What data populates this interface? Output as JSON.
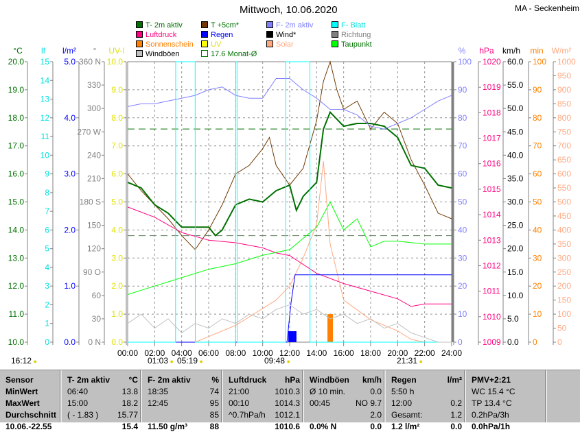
{
  "title": "Mittwoch, 10.06.2020",
  "station": "MA - Seckenheim",
  "legend": [
    {
      "label": "T- 2m aktiv",
      "color": "#007000",
      "text": "#007000"
    },
    {
      "label": "T +5cm*",
      "color": "#703800",
      "text": "#007000"
    },
    {
      "label": "F- 2m aktiv",
      "color": "#8080ff",
      "text": "#8080ff"
    },
    {
      "label": "F- Blatt",
      "color": "#00ffff",
      "text": "#00e0e0"
    },
    {
      "label": "Luftdruck",
      "color": "#ff0080",
      "text": "#ff0080"
    },
    {
      "label": "Regen",
      "color": "#0000ff",
      "text": "#0000ff"
    },
    {
      "label": "Wind*",
      "color": "#000000",
      "text": "#000000"
    },
    {
      "label": "Richtung",
      "color": "#808080",
      "text": "#808080"
    },
    {
      "label": "Sonnenschein",
      "color": "#ff8000",
      "text": "#ff8000"
    },
    {
      "label": "UV",
      "color": "#ffff00",
      "text": "#e0e000"
    },
    {
      "label": "Solar",
      "color": "#ffa880",
      "text": "#ffa880"
    },
    {
      "label": "Taupunkt",
      "color": "#00ff00",
      "text": "#007000"
    },
    {
      "label": "Windböen",
      "color": "#c0c0c0",
      "text": "#000000"
    },
    {
      "label": "17.6 Monat-Ø",
      "color": "none",
      "text": "#007000"
    }
  ],
  "chart_data": {
    "type": "line",
    "title": "Mittwoch, 10.06.2020",
    "xlabel": "time",
    "xlim": [
      0,
      24
    ],
    "x_ticks": [
      "00:00",
      "02:00",
      "04:00",
      "06:00",
      "08:00",
      "10:00",
      "12:00",
      "14:00",
      "16:00",
      "18:00",
      "20:00",
      "22:00",
      "24:00"
    ],
    "axes": {
      "left": [
        {
          "unit": "°C",
          "min": 10,
          "max": 20,
          "step": 1,
          "color": "#007000",
          "labels": [
            "10.0",
            "11.0",
            "12.0",
            "13.0",
            "14.0",
            "15.0",
            "16.0",
            "17.0",
            "18.0",
            "19.0",
            "20.0"
          ]
        },
        {
          "unit": "lf",
          "min": 0,
          "max": 15,
          "step": 1,
          "color": "#00e0e0",
          "labels": [
            "0",
            "1",
            "2",
            "3",
            "4",
            "5",
            "6",
            "7",
            "8",
            "9",
            "10",
            "11",
            "12",
            "13",
            "14",
            "15"
          ]
        },
        {
          "unit": "l/m²",
          "min": 0,
          "max": 5,
          "step": 1,
          "color": "#0000ff",
          "labels": [
            "0.0",
            "1.0",
            "2.0",
            "3.0",
            "4.0",
            "5.0"
          ]
        },
        {
          "unit": "°",
          "min": 0,
          "max": 360,
          "step": 30,
          "color": "#808080",
          "labels": [
            "0    N",
            "30",
            "60",
            "90    O",
            "120",
            "150",
            "180    S",
            "210",
            "240",
            "270    W",
            "300",
            "330",
            "360    N"
          ]
        },
        {
          "unit": "UV-I",
          "min": 0,
          "max": 10,
          "step": 1,
          "color": "#e0e000",
          "labels": [
            "0.0",
            "1.0",
            "2.0",
            "3.0",
            "4.0",
            "5.0",
            "6.0",
            "7.0",
            "8.0",
            "9.0",
            "10.0"
          ]
        }
      ],
      "right": [
        {
          "unit": "%",
          "min": 0,
          "max": 100,
          "step": 10,
          "color": "#8080ff",
          "labels": [
            "0",
            "10",
            "20",
            "30",
            "40",
            "50",
            "60",
            "70",
            "80",
            "90",
            "100"
          ]
        },
        {
          "unit": "hPa",
          "min": 1009,
          "max": 1020,
          "step": 1,
          "color": "#ff0080",
          "labels": [
            "1009",
            "1010",
            "1011",
            "1012",
            "1013",
            "1014",
            "1015",
            "1016",
            "1017",
            "1018",
            "1019",
            "1020"
          ]
        },
        {
          "unit": "km/h",
          "min": 0,
          "max": 60,
          "step": 5,
          "color": "#000000",
          "labels": [
            "0.0",
            "5.0",
            "10.0",
            "15.0",
            "20.0",
            "25.0",
            "30.0",
            "35.0",
            "40.0",
            "45.0",
            "50.0",
            "55.0",
            "60.0"
          ]
        },
        {
          "unit": "min",
          "min": 0,
          "max": 100,
          "step": 10,
          "color": "#ff8000",
          "labels": [
            "0",
            "10",
            "20",
            "30",
            "40",
            "50",
            "60",
            "70",
            "80",
            "90",
            "100"
          ]
        },
        {
          "unit": "W/m²",
          "min": 0,
          "max": 1000,
          "step": 50,
          "color": "#ffa880",
          "labels": [
            "0",
            "50",
            "100",
            "150",
            "200",
            "250",
            "300",
            "350",
            "400",
            "450",
            "500",
            "550",
            "600",
            "650",
            "700",
            "750",
            "800",
            "850",
            "900",
            "950",
            "1000"
          ]
        }
      ]
    },
    "series": [
      {
        "name": "T+5cm",
        "axis": "°C",
        "color": "#703800",
        "x": [
          0,
          1,
          2,
          3,
          4,
          5,
          6,
          7,
          8,
          9,
          10,
          10.5,
          11,
          12,
          13,
          14,
          14.5,
          15,
          15.5,
          16,
          17,
          18,
          19,
          20,
          21,
          22,
          23,
          24
        ],
        "y": [
          16.0,
          15.4,
          14.9,
          14.4,
          13.8,
          13.3,
          14.0,
          14.9,
          16.0,
          16.3,
          16.9,
          17.3,
          16.3,
          15.6,
          16.2,
          17.9,
          19.3,
          20.0,
          19.0,
          18.3,
          18.6,
          17.6,
          18.2,
          17.8,
          16.5,
          15.6,
          14.6,
          14.4
        ]
      },
      {
        "name": "T- 2m aktiv",
        "axis": "°C",
        "color": "#007000",
        "width": 2,
        "x": [
          0,
          1,
          2,
          3,
          4,
          5,
          6,
          6.5,
          7,
          8,
          9,
          10,
          11,
          12,
          12.5,
          13,
          14,
          14.5,
          15,
          16,
          17,
          18,
          19,
          20,
          21,
          22,
          23,
          24
        ],
        "y": [
          15.7,
          15.5,
          14.9,
          14.6,
          14.1,
          14.1,
          14.1,
          13.8,
          14.0,
          14.9,
          15.1,
          15.0,
          15.4,
          15.6,
          14.7,
          15.2,
          15.7,
          17.6,
          18.2,
          17.7,
          17.8,
          17.8,
          17.7,
          17.3,
          16.3,
          16.2,
          15.6,
          15.5
        ]
      },
      {
        "name": "F- 2m aktiv",
        "axis": "%",
        "color": "#8080ff",
        "x": [
          0,
          1,
          2,
          3,
          4,
          5,
          6,
          7,
          8,
          9,
          10,
          11,
          12,
          13,
          14,
          15,
          16,
          17,
          18,
          19,
          20,
          21,
          22,
          23,
          24
        ],
        "y": [
          84,
          85,
          85,
          86,
          87,
          88,
          90,
          91,
          88,
          87,
          87,
          94,
          94,
          90,
          87,
          83,
          83,
          81,
          77,
          76,
          78,
          80,
          83,
          86,
          88
        ]
      },
      {
        "name": "Luftdruck",
        "axis": "hPa",
        "color": "#ff0080",
        "x": [
          0,
          2,
          4,
          6,
          8,
          10,
          11,
          12,
          14,
          16,
          18,
          20,
          21,
          22,
          24
        ],
        "y": [
          1014.3,
          1013.9,
          1013.3,
          1013.0,
          1012.9,
          1012.7,
          1012.5,
          1012.4,
          1011.7,
          1011.3,
          1011.0,
          1010.7,
          1010.4,
          1010.5,
          1010.5
        ]
      },
      {
        "name": "Taupunkt",
        "axis": "°C",
        "color": "#00ff00",
        "x": [
          0,
          2,
          4,
          6,
          8,
          10,
          12,
          14,
          15,
          16,
          17,
          18,
          19,
          20,
          22,
          24
        ],
        "y": [
          11.7,
          12.0,
          12.3,
          12.6,
          12.8,
          13.1,
          13.3,
          14.1,
          15.0,
          14.0,
          14.4,
          13.4,
          13.6,
          13.6,
          13.5,
          13.5
        ]
      },
      {
        "name": "Solar",
        "axis": "W/m²",
        "color": "#ffa880",
        "x": [
          0,
          5,
          6,
          8,
          10,
          11,
          12,
          13,
          14,
          14.5,
          15,
          16,
          18,
          20,
          21,
          22,
          24
        ],
        "y": [
          0,
          0,
          20,
          60,
          120,
          150,
          200,
          300,
          420,
          645,
          350,
          150,
          80,
          40,
          10,
          0,
          0
        ]
      },
      {
        "name": "Regen",
        "axis": "l/m²",
        "color": "#0000ff",
        "x": [
          0,
          11.8,
          12.1,
          12.4,
          24
        ],
        "y": [
          0,
          0,
          0.7,
          1.2,
          1.2
        ]
      },
      {
        "name": "F- Blatt",
        "axis": "lf",
        "color": "#00ffff",
        "x": [
          0,
          3.55,
          3.56,
          5.0,
          5.01,
          8.0,
          8.01,
          8.1,
          8.11,
          11.7,
          11.71,
          13.5,
          13.51,
          24
        ],
        "y": [
          0,
          0,
          15,
          15,
          0,
          0,
          15,
          15,
          0,
          0,
          15,
          15,
          0,
          0
        ]
      },
      {
        "name": "Windböen",
        "axis": "km/h",
        "color": "#c0c0c0",
        "x": [
          0,
          1,
          2,
          3,
          4,
          5,
          6,
          7,
          8,
          9,
          10,
          11,
          12,
          13,
          14,
          15,
          16,
          17,
          18,
          19,
          20,
          21,
          22,
          23,
          24
        ],
        "y": [
          4,
          6,
          3,
          5,
          2,
          4,
          3,
          5,
          4,
          6,
          5,
          7,
          8,
          6,
          7,
          5,
          6,
          4,
          5,
          3,
          4,
          2,
          1,
          0,
          0
        ]
      }
    ],
    "sunshine_bars": {
      "axis": "min",
      "x": [
        14.8,
        15.0
      ],
      "y": [
        10,
        10
      ]
    },
    "rain_bars": {
      "axis": "l/m²",
      "x": [
        11.9,
        12.1,
        12.3
      ],
      "y": [
        0.2,
        0.2,
        0.2
      ]
    },
    "reference_lines": [
      {
        "label": "17.6 Monat-Ø",
        "axis": "°C",
        "value": 17.6,
        "color": "#007000"
      },
      {
        "axis": "°C",
        "value": 13.8,
        "color": "#608060"
      }
    ]
  },
  "sun_moon": {
    "now": "16:12",
    "moonrise": "01:03",
    "sunrise": "05:19",
    "moonset": "09:48",
    "sunset": "21:31"
  },
  "table": {
    "cols": [
      {
        "h1": "Sensor",
        "h2": "",
        "rows": [
          [
            "MinWert",
            ""
          ],
          [
            "MaxWert",
            ""
          ],
          [
            "Durchschnitt",
            ""
          ],
          [
            "10.06.-22.55",
            ""
          ]
        ]
      },
      {
        "h1": "T- 2m aktiv",
        "h2": "°C",
        "rows": [
          [
            "06:40",
            "13.8"
          ],
          [
            "15:00",
            "18.2"
          ],
          [
            "( - 1.83 )",
            "15.77"
          ],
          [
            "",
            "15.4"
          ]
        ]
      },
      {
        "h1": "F- 2m aktiv",
        "h2": "%",
        "rows": [
          [
            "18:35",
            "74"
          ],
          [
            "12:45",
            "95"
          ],
          [
            "",
            "85"
          ],
          [
            "11.50 g/m³",
            "88"
          ]
        ]
      },
      {
        "h1": "Luftdruck",
        "h2": "hPa",
        "rows": [
          [
            "21:00",
            "1010.3"
          ],
          [
            "00:10",
            "1014.3"
          ],
          [
            "^0.7hPa/h",
            "1012.1"
          ],
          [
            "",
            "1010.6"
          ]
        ]
      },
      {
        "h1": "Windböen",
        "h2": "km/h",
        "rows": [
          [
            "Ø 10 min.",
            "0.0"
          ],
          [
            "00:45",
            "NO 9.7"
          ],
          [
            "",
            "2.0"
          ],
          [
            "0.0% N",
            "0.0"
          ]
        ]
      },
      {
        "h1": "Regen",
        "h2": "l/m²",
        "rows": [
          [
            "5:50 h",
            ""
          ],
          [
            "12:00",
            "0.2"
          ],
          [
            "Gesamt:",
            "1.2"
          ],
          [
            "1.2 l/m²",
            "0.0"
          ]
        ]
      },
      {
        "h1": "PMV+2:21",
        "h2": "",
        "rows": [
          [
            "WC 15.4 °C",
            ""
          ],
          [
            "TP 13.4 °C",
            ""
          ],
          [
            "0.2hPa/3h",
            ""
          ],
          [
            "0.0hPa/1h",
            ""
          ]
        ]
      }
    ]
  }
}
